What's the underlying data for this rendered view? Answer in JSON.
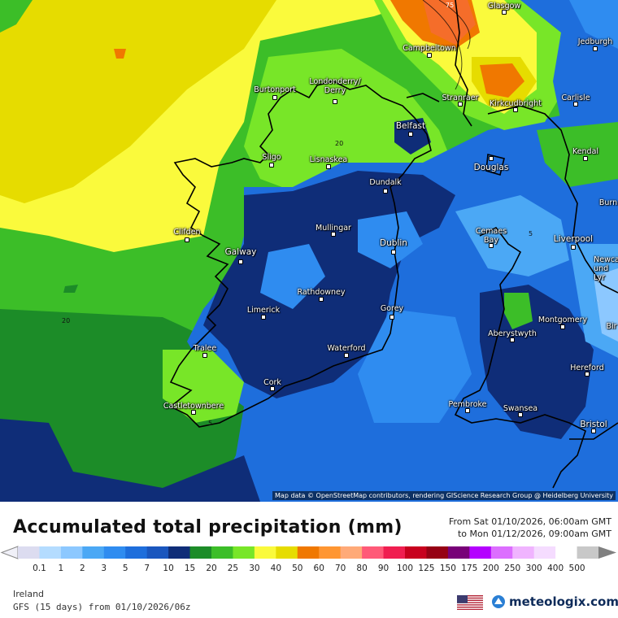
{
  "header": {
    "title": "Accumulated total precipitation (mm)",
    "period_from": "From Sat 01/10/2026, 06:00am GMT",
    "period_to": "to Mon 01/12/2026, 09:00am GMT"
  },
  "map": {
    "attribution": "Map data © OpenStreetMap contributors, rendering GIScience Research Group @ Heidelberg University",
    "cities": [
      "Glasgow",
      "Jedburgh",
      "Campbeltown",
      "Londonderry/\nDerry",
      "Burtonport",
      "Stranraer",
      "Kirkcudbright",
      "Carlisle",
      "Belfast",
      "Kendal",
      "Sligo",
      "Lisnaskea",
      "Douglas",
      "Dundalk",
      "Burn",
      "Mullingar",
      "Clifden",
      "Cemaes\nBay",
      "Liverpool",
      "Galway",
      "Dublin",
      "Newca\nund\nLyr",
      "Rathdowney",
      "Limerick",
      "Gorey",
      "Montgomery",
      "Aberystwyth",
      "Bir",
      "Tralee",
      "Waterford",
      "Hereford",
      "Cork",
      "Castletownbere",
      "Pembroke",
      "Swansea",
      "Bristol"
    ],
    "contour_labels": [
      "75",
      "20",
      "20",
      "5",
      "5"
    ]
  },
  "legend": {
    "ticks": [
      "0.1",
      "1",
      "2",
      "3",
      "5",
      "7",
      "10",
      "15",
      "20",
      "25",
      "30",
      "40",
      "50",
      "60",
      "70",
      "80",
      "90",
      "100",
      "125",
      "150",
      "175",
      "200",
      "250",
      "300",
      "400",
      "500"
    ],
    "colors": [
      "#dcdcf0",
      "#b4dcff",
      "#8cc8ff",
      "#4ba8f5",
      "#2f8cf0",
      "#1e6edc",
      "#1a56be",
      "#0f2d78",
      "#1c8c28",
      "#3cbe28",
      "#78e628",
      "#fafa3c",
      "#e6dc00",
      "#f07800",
      "#ff9632",
      "#ffaa78",
      "#ff5a78",
      "#f01e50",
      "#c8001e",
      "#960014",
      "#780078",
      "#b400ff",
      "#dc6eff",
      "#f0b4ff",
      "#f5dcff",
      "#ffffff",
      "#c8c8c8"
    ],
    "arrow_left_color": "#f0f0f8",
    "arrow_right_color": "#808080"
  },
  "footer": {
    "region": "Ireland",
    "model": "GFS (15 days) from 01/10/2026/06z",
    "brand": "meteologix.com",
    "flag": "us-flag-icon",
    "logo": "meteologix-logo-icon"
  }
}
